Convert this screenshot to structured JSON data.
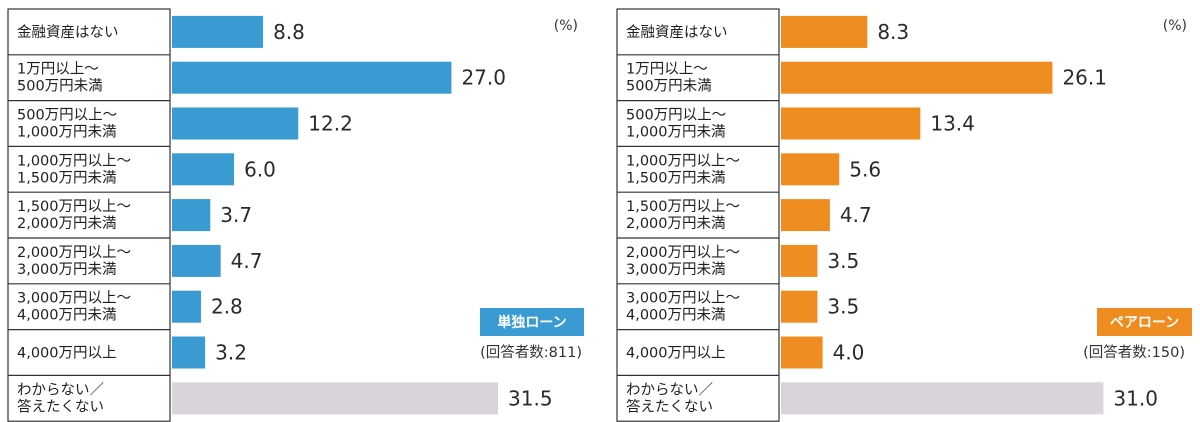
{
  "colors": {
    "left_bar": "#3a9bd2",
    "right_bar": "#ef8c1f",
    "unknown_bar": "#d9d4da",
    "table_border": "#333333"
  },
  "chart_data": [
    {
      "type": "bar",
      "orientation": "horizontal",
      "unit": "(%)",
      "legend": "単独ローン",
      "respondents": "(回答者数:811)",
      "categories": [
        [
          "金融資産はない"
        ],
        [
          "1万円以上～",
          "500万円未満"
        ],
        [
          "500万円以上～",
          "1,000万円未満"
        ],
        [
          "1,000万円以上～",
          "1,500万円未満"
        ],
        [
          "1,500万円以上～",
          "2,000万円未満"
        ],
        [
          "2,000万円以上～",
          "3,000万円未満"
        ],
        [
          "3,000万円以上～",
          "4,000万円未満"
        ],
        [
          "4,000万円以上"
        ],
        [
          "わからない／",
          "答えたくない"
        ]
      ],
      "values": [
        8.8,
        27.0,
        12.2,
        6.0,
        3.7,
        4.7,
        2.8,
        3.2,
        31.5
      ],
      "value_labels": [
        "8.8",
        "27.0",
        "12.2",
        "6.0",
        "3.7",
        "4.7",
        "2.8",
        "3.2",
        "31.5"
      ],
      "legend_placement": "right"
    },
    {
      "type": "bar",
      "orientation": "horizontal",
      "unit": "(%)",
      "legend": "ペアローン",
      "respondents": "(回答者数:150)",
      "categories": [
        [
          "金融資産はない"
        ],
        [
          "1万円以上～",
          "500万円未満"
        ],
        [
          "500万円以上～",
          "1,000万円未満"
        ],
        [
          "1,000万円以上～",
          "1,500万円未満"
        ],
        [
          "1,500万円以上～",
          "2,000万円未満"
        ],
        [
          "2,000万円以上～",
          "3,000万円未満"
        ],
        [
          "3,000万円以上～",
          "4,000万円未満"
        ],
        [
          "4,000万円以上"
        ],
        [
          "わからない／",
          "答えたくない"
        ]
      ],
      "values": [
        8.3,
        26.1,
        13.4,
        5.6,
        4.7,
        3.5,
        3.5,
        4.0,
        31.0
      ],
      "value_labels": [
        "8.3",
        "26.1",
        "13.4",
        "5.6",
        "4.7",
        "3.5",
        "3.5",
        "4.0",
        "31.0"
      ],
      "legend_placement": "right"
    }
  ]
}
